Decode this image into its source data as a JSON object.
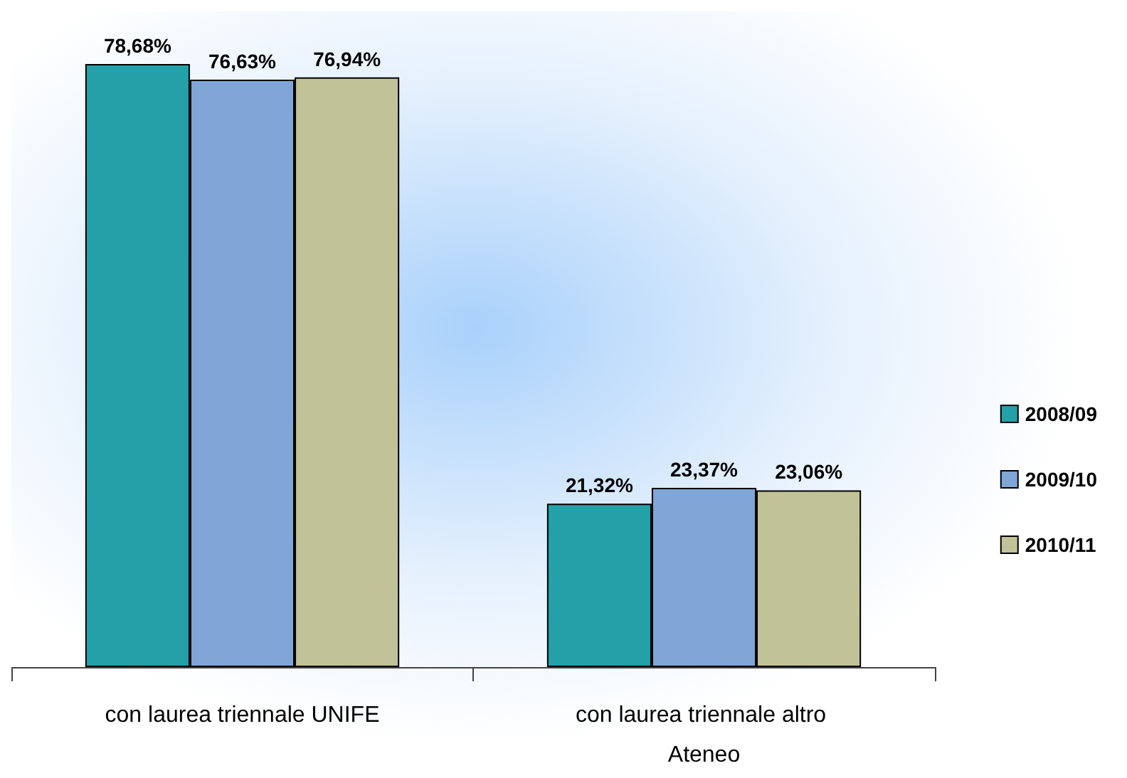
{
  "chart_data": {
    "type": "bar",
    "categories": [
      "con laurea triennale UNIFE",
      "con laurea triennale altro Ateneo"
    ],
    "series": [
      {
        "name": "2008/09",
        "color": "#23a0a8",
        "values": [
          78.68,
          21.32
        ],
        "value_labels": [
          "78,68%",
          "21,32%"
        ]
      },
      {
        "name": "2009/10",
        "color": "#7fa6d6",
        "values": [
          76.63,
          23.37
        ],
        "value_labels": [
          "76,63%",
          "23,37%"
        ]
      },
      {
        "name": "2010/11",
        "color": "#c2c298",
        "values": [
          76.94,
          23.06
        ],
        "value_labels": [
          "76,94%",
          "23,06%"
        ]
      }
    ],
    "legend": "right",
    "tick_labels": "x"
  }
}
